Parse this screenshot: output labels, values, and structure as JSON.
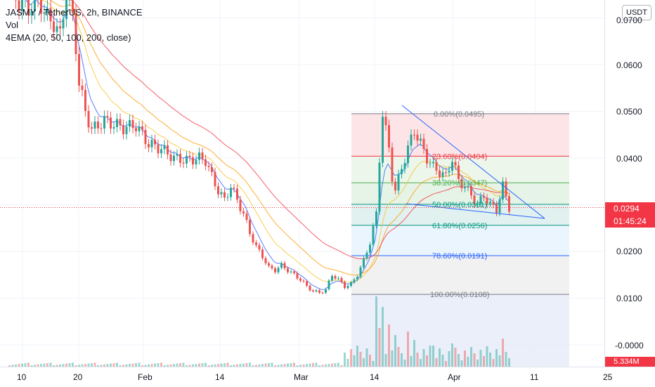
{
  "legend": {
    "symbol": "JASMY / TetherUS, 2h, BINANCE",
    "vol": "Vol",
    "ema": "4EMA (20, 50, 100, 200, close)"
  },
  "price_axis": {
    "currency": "USDT",
    "labels": [
      "0.0700",
      "0.0600",
      "0.0500",
      "0.0400",
      "0.0200",
      "0.0100",
      "-0.0000"
    ],
    "last_price": "0.0294",
    "countdown": "01:45:24",
    "volume": "5.334M"
  },
  "time_axis": {
    "labels": [
      "10",
      "20",
      "Feb",
      "14",
      "Mar",
      "14",
      "Apr",
      "11",
      "25"
    ]
  },
  "fib_levels": [
    {
      "label": "0.00%(0.0495)",
      "price": 0.0495,
      "color": "#787b86",
      "fill": "#fde2e4"
    },
    {
      "label": "23.60%(0.0404)",
      "price": 0.0404,
      "color": "#f23645",
      "fill": "#eaf5e9"
    },
    {
      "label": "38.20%(0.0347)",
      "price": 0.0347,
      "color": "#4caf50",
      "fill": "#e3f2e4"
    },
    {
      "label": "50.00%(0.0301)",
      "price": 0.0301,
      "color": "#089981",
      "fill": "#ddf0ee"
    },
    {
      "label": "61.80%(0.0256)",
      "price": 0.0256,
      "color": "#089981",
      "fill": "#e9f4fd"
    },
    {
      "label": "78.60%(0.0191)",
      "price": 0.0191,
      "color": "#2962ff",
      "fill": "#f0f0f0"
    },
    {
      "label": "100.00%(0.0108)",
      "price": 0.0108,
      "color": "#787b86",
      "fill": "#e8edfa"
    }
  ],
  "colors": {
    "up": "#26a69a",
    "down": "#ef5350",
    "ema20": "#2962ff",
    "ema50": "#f7c325",
    "ema100": "#ff9800",
    "ema200": "#f23645",
    "trendline": "#2962ff",
    "price_line": "#f23645"
  },
  "chart_data": {
    "type": "candlestick",
    "price_series": [
      [
        0,
        0.076
      ],
      [
        3,
        0.0735
      ],
      [
        6,
        0.072
      ],
      [
        8,
        0.0735
      ],
      [
        10,
        0.073
      ],
      [
        12,
        0.07
      ],
      [
        14,
        0.069
      ],
      [
        16,
        0.066
      ],
      [
        18,
        0.076
      ],
      [
        20,
        0.07
      ],
      [
        21,
        0.064
      ],
      [
        22,
        0.056
      ],
      [
        24,
        0.05
      ],
      [
        26,
        0.046
      ],
      [
        30,
        0.048
      ],
      [
        36,
        0.0465
      ],
      [
        40,
        0.047
      ],
      [
        44,
        0.043
      ],
      [
        48,
        0.042
      ],
      [
        52,
        0.04
      ],
      [
        56,
        0.0395
      ],
      [
        60,
        0.04
      ],
      [
        62,
        0.0395
      ],
      [
        64,
        0.036
      ],
      [
        66,
        0.033
      ],
      [
        68,
        0.031
      ],
      [
        70,
        0.034
      ],
      [
        72,
        0.031
      ],
      [
        74,
        0.028
      ],
      [
        76,
        0.024
      ],
      [
        78,
        0.021
      ],
      [
        80,
        0.019
      ],
      [
        82,
        0.0165
      ],
      [
        84,
        0.016
      ],
      [
        86,
        0.017
      ],
      [
        88,
        0.016
      ],
      [
        90,
        0.015
      ],
      [
        92,
        0.014
      ],
      [
        94,
        0.0125
      ],
      [
        96,
        0.0115
      ],
      [
        98,
        0.0112
      ],
      [
        100,
        0.0118
      ],
      [
        102,
        0.015
      ],
      [
        104,
        0.014
      ],
      [
        106,
        0.0125
      ],
      [
        108,
        0.013
      ],
      [
        110,
        0.015
      ],
      [
        112,
        0.018
      ],
      [
        114,
        0.022
      ],
      [
        116,
        0.028
      ],
      [
        117,
        0.04
      ],
      [
        118,
        0.0495
      ],
      [
        120,
        0.042
      ],
      [
        121,
        0.036
      ],
      [
        122,
        0.033
      ],
      [
        124,
        0.038
      ],
      [
        126,
        0.042
      ],
      [
        128,
        0.046
      ],
      [
        130,
        0.043
      ],
      [
        132,
        0.04
      ],
      [
        134,
        0.038
      ],
      [
        136,
        0.037
      ],
      [
        138,
        0.036
      ],
      [
        140,
        0.04
      ],
      [
        142,
        0.035
      ],
      [
        144,
        0.034
      ],
      [
        146,
        0.032
      ],
      [
        148,
        0.03
      ],
      [
        150,
        0.032
      ],
      [
        152,
        0.03
      ],
      [
        154,
        0.029
      ],
      [
        156,
        0.034
      ],
      [
        158,
        0.0294
      ]
    ],
    "volume_spikes": [
      [
        116,
        1.0
      ],
      [
        117,
        0.55
      ],
      [
        118,
        0.85
      ],
      [
        120,
        0.6
      ],
      [
        122,
        0.45
      ],
      [
        126,
        0.5
      ],
      [
        128,
        0.38
      ],
      [
        134,
        0.3
      ],
      [
        140,
        0.33
      ],
      [
        156,
        0.4
      ]
    ],
    "x_labels": [
      "10",
      "20",
      "Feb",
      "14",
      "Mar",
      "14",
      "Apr",
      "11",
      "25"
    ]
  }
}
